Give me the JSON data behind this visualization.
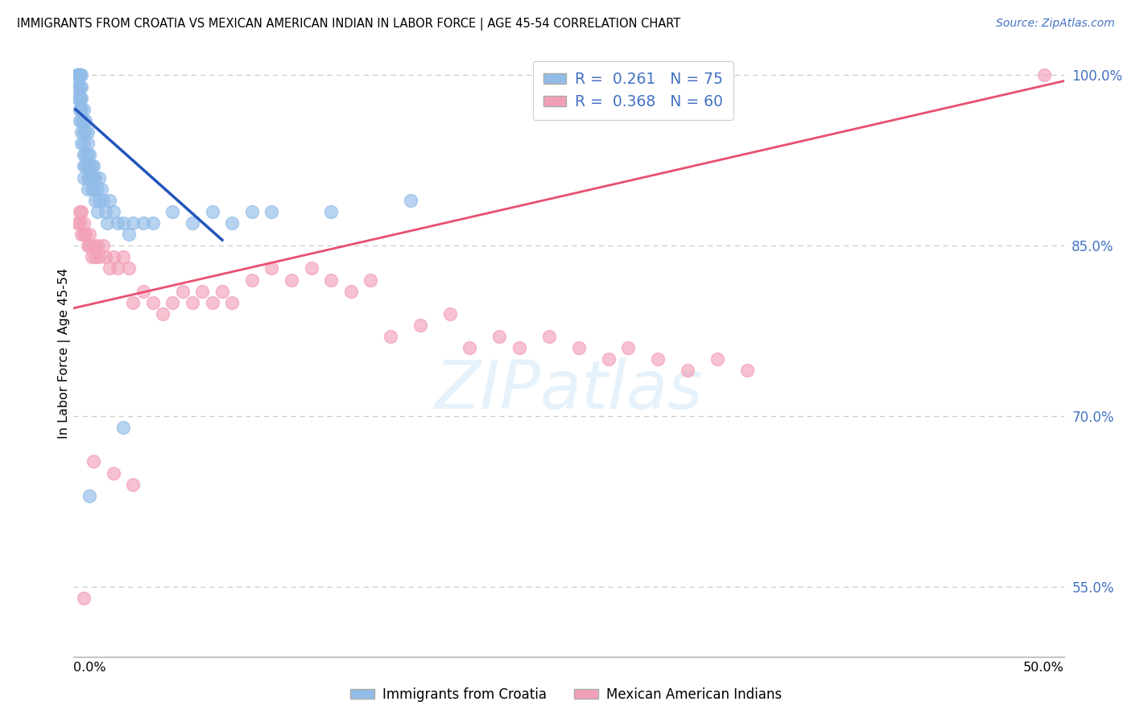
{
  "title": "IMMIGRANTS FROM CROATIA VS MEXICAN AMERICAN INDIAN IN LABOR FORCE | AGE 45-54 CORRELATION CHART",
  "source": "Source: ZipAtlas.com",
  "ylabel": "In Labor Force | Age 45-54",
  "xlim": [
    0.0,
    0.5
  ],
  "ylim": [
    0.488,
    1.022
  ],
  "blue_R": 0.261,
  "blue_N": 75,
  "pink_R": 0.368,
  "pink_N": 60,
  "blue_color": "#92bce8",
  "pink_color": "#f2a0b8",
  "blue_line_color": "#2255bb",
  "pink_line_color": "#e85070",
  "legend_label_blue": "Immigrants from Croatia",
  "legend_label_pink": "Mexican American Indians",
  "ytick_vals": [
    0.55,
    0.7,
    0.85,
    1.0
  ],
  "ytick_labels": [
    "55.0%",
    "70.0%",
    "85.0%",
    "100.0%"
  ],
  "grid_color": "#cccccc",
  "background_color": "#ffffff",
  "blue_line_x0": 0.001,
  "blue_line_x1": 0.075,
  "blue_line_y0": 0.97,
  "blue_line_y1": 0.855,
  "pink_line_x0": 0.0,
  "pink_line_x1": 0.5,
  "pink_line_y0": 0.795,
  "pink_line_y1": 0.995,
  "blue_x": [
    0.002,
    0.002,
    0.002,
    0.002,
    0.003,
    0.003,
    0.003,
    0.003,
    0.003,
    0.003,
    0.003,
    0.003,
    0.003,
    0.003,
    0.004,
    0.004,
    0.004,
    0.004,
    0.004,
    0.004,
    0.004,
    0.005,
    0.005,
    0.005,
    0.005,
    0.005,
    0.005,
    0.005,
    0.006,
    0.006,
    0.006,
    0.006,
    0.007,
    0.007,
    0.007,
    0.007,
    0.007,
    0.007,
    0.008,
    0.008,
    0.008,
    0.009,
    0.009,
    0.009,
    0.01,
    0.01,
    0.01,
    0.011,
    0.011,
    0.012,
    0.012,
    0.013,
    0.013,
    0.014,
    0.015,
    0.016,
    0.017,
    0.018,
    0.02,
    0.022,
    0.025,
    0.028,
    0.03,
    0.035,
    0.04,
    0.05,
    0.06,
    0.07,
    0.08,
    0.09,
    0.1,
    0.13,
    0.17,
    0.025,
    0.008
  ],
  "blue_y": [
    1.0,
    1.0,
    0.99,
    0.98,
    1.0,
    1.0,
    1.0,
    0.99,
    0.99,
    0.98,
    0.98,
    0.97,
    0.97,
    0.96,
    1.0,
    0.99,
    0.98,
    0.97,
    0.96,
    0.95,
    0.94,
    0.97,
    0.96,
    0.95,
    0.94,
    0.93,
    0.92,
    0.91,
    0.96,
    0.95,
    0.93,
    0.92,
    0.95,
    0.94,
    0.93,
    0.92,
    0.91,
    0.9,
    0.93,
    0.92,
    0.91,
    0.92,
    0.91,
    0.9,
    0.92,
    0.91,
    0.9,
    0.91,
    0.89,
    0.9,
    0.88,
    0.91,
    0.89,
    0.9,
    0.89,
    0.88,
    0.87,
    0.89,
    0.88,
    0.87,
    0.87,
    0.86,
    0.87,
    0.87,
    0.87,
    0.88,
    0.87,
    0.88,
    0.87,
    0.88,
    0.88,
    0.88,
    0.89,
    0.69,
    0.63
  ],
  "pink_x": [
    0.002,
    0.003,
    0.003,
    0.004,
    0.004,
    0.005,
    0.005,
    0.006,
    0.007,
    0.008,
    0.008,
    0.009,
    0.01,
    0.011,
    0.012,
    0.013,
    0.015,
    0.016,
    0.018,
    0.02,
    0.022,
    0.025,
    0.028,
    0.03,
    0.035,
    0.04,
    0.045,
    0.05,
    0.055,
    0.06,
    0.065,
    0.07,
    0.075,
    0.08,
    0.09,
    0.1,
    0.11,
    0.12,
    0.13,
    0.14,
    0.15,
    0.16,
    0.175,
    0.19,
    0.2,
    0.215,
    0.225,
    0.24,
    0.255,
    0.27,
    0.28,
    0.295,
    0.31,
    0.325,
    0.34,
    0.005,
    0.01,
    0.02,
    0.03,
    0.49
  ],
  "pink_y": [
    0.87,
    0.88,
    0.87,
    0.88,
    0.86,
    0.87,
    0.86,
    0.86,
    0.85,
    0.86,
    0.85,
    0.84,
    0.85,
    0.84,
    0.85,
    0.84,
    0.85,
    0.84,
    0.83,
    0.84,
    0.83,
    0.84,
    0.83,
    0.8,
    0.81,
    0.8,
    0.79,
    0.8,
    0.81,
    0.8,
    0.81,
    0.8,
    0.81,
    0.8,
    0.82,
    0.83,
    0.82,
    0.83,
    0.82,
    0.81,
    0.82,
    0.77,
    0.78,
    0.79,
    0.76,
    0.77,
    0.76,
    0.77,
    0.76,
    0.75,
    0.76,
    0.75,
    0.74,
    0.75,
    0.74,
    0.54,
    0.66,
    0.65,
    0.64,
    1.0
  ],
  "watermark_text": "ZIPatlas",
  "watermark_color": "#d0e8f8",
  "watermark_alpha": 0.55,
  "watermark_size": 60
}
